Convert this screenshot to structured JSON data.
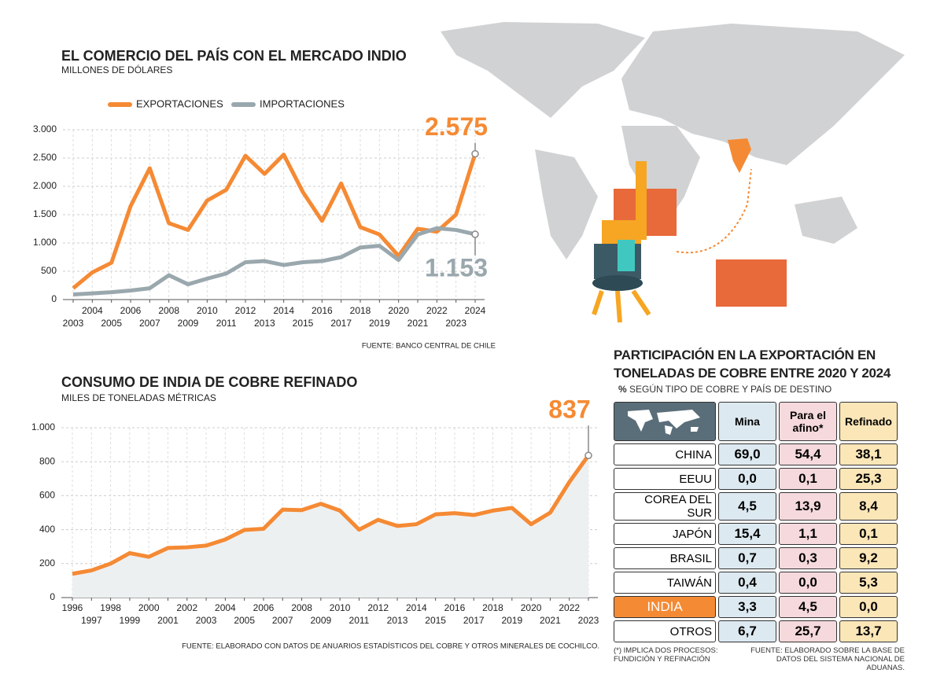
{
  "chart_data": [
    {
      "type": "line",
      "title": "EL COMERCIO DEL PAÍS CON EL MERCADO INDIO",
      "subtitle": "MILLONES DE DÓLARES",
      "x": [
        2003,
        2004,
        2005,
        2006,
        2007,
        2008,
        2009,
        2010,
        2011,
        2012,
        2013,
        2014,
        2015,
        2016,
        2017,
        2018,
        2019,
        2020,
        2021,
        2022,
        2023,
        2024
      ],
      "series": [
        {
          "name": "EXPORTACIONES",
          "color": "#f58a34",
          "values": [
            200,
            480,
            650,
            1650,
            2320,
            1350,
            1230,
            1750,
            1940,
            2540,
            2220,
            2560,
            1900,
            1390,
            2050,
            1280,
            1150,
            770,
            1250,
            1200,
            1500,
            2575
          ],
          "value_labels": [
            null,
            null,
            null,
            null,
            null,
            null,
            null,
            null,
            null,
            null,
            null,
            null,
            null,
            null,
            null,
            null,
            null,
            null,
            null,
            null,
            null,
            "2.575"
          ]
        },
        {
          "name": "IMPORTACIONES",
          "color": "#9aa8ae",
          "values": [
            90,
            110,
            130,
            160,
            200,
            430,
            270,
            370,
            460,
            660,
            680,
            610,
            660,
            680,
            750,
            920,
            950,
            700,
            1150,
            1260,
            1230,
            1153
          ],
          "value_labels": [
            null,
            null,
            null,
            null,
            null,
            null,
            null,
            null,
            null,
            null,
            null,
            null,
            null,
            null,
            null,
            null,
            null,
            null,
            null,
            null,
            null,
            "1.153"
          ]
        }
      ],
      "ylim": [
        0,
        3000
      ],
      "yticks": [
        0,
        500,
        {
          "value": 1000,
          "label": "1.000"
        },
        {
          "value": 1500,
          "label": "1.500"
        },
        {
          "value": 2000,
          "label": "2.000"
        },
        {
          "value": 2500,
          "label": "2.500"
        },
        {
          "value": 3000,
          "label": "3.000"
        }
      ],
      "grid": true,
      "source": "FUENTE: BANCO CENTRAL DE CHILE"
    },
    {
      "type": "area",
      "title": "CONSUMO DE INDIA DE COBRE REFINADO",
      "subtitle": "MILES DE TONELADAS MÉTRICAS",
      "x": [
        1996,
        1997,
        1998,
        1999,
        2000,
        2001,
        2002,
        2003,
        2004,
        2005,
        2006,
        2007,
        2008,
        2009,
        2010,
        2011,
        2012,
        2013,
        2014,
        2015,
        2016,
        2017,
        2018,
        2019,
        2020,
        2021,
        2022,
        2023
      ],
      "values": [
        140,
        160,
        200,
        262,
        240,
        292,
        296,
        306,
        342,
        398,
        405,
        518,
        515,
        552,
        512,
        400,
        458,
        422,
        432,
        490,
        497,
        486,
        512,
        528,
        432,
        500,
        680,
        837
      ],
      "value_labels": [
        null,
        null,
        null,
        null,
        null,
        null,
        null,
        null,
        null,
        null,
        null,
        null,
        null,
        null,
        null,
        null,
        null,
        null,
        null,
        null,
        null,
        null,
        null,
        null,
        null,
        null,
        null,
        "837"
      ],
      "color": "#f58a34",
      "ylim": [
        0,
        1000
      ],
      "yticks": [
        0,
        200,
        400,
        600,
        800,
        {
          "value": 1000,
          "label": "1.000"
        }
      ],
      "grid": true,
      "source": "FUENTE: ELABORADO CON DATOS DE ANUARIOS ESTADÍSTICOS DEL COBRE Y OTROS MINERALES DE COCHILCO."
    }
  ],
  "table": {
    "title": "PARTICIPACIÓN EN LA EXPORTACIÓN EN TONELADAS DE COBRE ENTRE 2020 Y 2024",
    "unit": "%",
    "subtitle": "SEGÚN TIPO DE COBRE Y PAÍS DE DESTINO",
    "columns": [
      "Mina",
      "Para el afino*",
      "Refinado"
    ],
    "rows": [
      {
        "name": "CHINA",
        "values": [
          "69,0",
          "54,4",
          "38,1"
        ]
      },
      {
        "name": "EEUU",
        "values": [
          "0,0",
          "0,1",
          "25,3"
        ]
      },
      {
        "name": "COREA DEL SUR",
        "values": [
          "4,5",
          "13,9",
          "8,4"
        ]
      },
      {
        "name": "JAPÓN",
        "values": [
          "15,4",
          "1,1",
          "0,1"
        ]
      },
      {
        "name": "BRASIL",
        "values": [
          "0,7",
          "0,3",
          "9,2"
        ]
      },
      {
        "name": "TAIWÁN",
        "values": [
          "0,4",
          "0,0",
          "5,3"
        ]
      },
      {
        "name": "INDIA",
        "values": [
          "3,3",
          "4,5",
          "0,0"
        ],
        "highlight": true
      },
      {
        "name": "OTROS",
        "values": [
          "6,7",
          "25,7",
          "13,7"
        ]
      }
    ],
    "note": "(*) IMPLICA DOS PROCESOS: FUNDICIÓN Y REFINACIÓN",
    "source": "FUENTE: ELABORADO SOBRE LA BASE DE DATOS DEL SISTEMA NACIONAL DE ADUANAS."
  }
}
